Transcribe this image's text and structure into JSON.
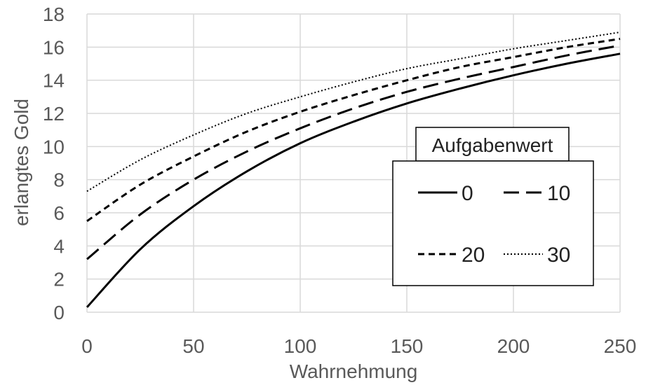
{
  "chart_data": {
    "type": "line",
    "title": "",
    "xlabel": "Wahrnehmung",
    "ylabel": "erlangtes Gold",
    "xlim": [
      0,
      250
    ],
    "ylim": [
      0,
      18
    ],
    "x_ticks": [
      "0",
      "50",
      "100",
      "150",
      "200",
      "250"
    ],
    "y_ticks": [
      "0",
      "2",
      "4",
      "6",
      "8",
      "10",
      "12",
      "14",
      "16",
      "18"
    ],
    "grid": true,
    "legend": {
      "title": "Aufgabenwert",
      "placement": "center-right",
      "entries": [
        "0",
        "10",
        "20",
        "30"
      ]
    },
    "x": [
      0,
      25,
      50,
      75,
      100,
      125,
      150,
      175,
      200,
      225,
      250
    ],
    "series": [
      {
        "name": "0",
        "style": "solid",
        "values": [
          0.3,
          3.8,
          6.4,
          8.5,
          10.2,
          11.5,
          12.6,
          13.5,
          14.3,
          15.0,
          15.6
        ]
      },
      {
        "name": "10",
        "style": "dashed",
        "values": [
          3.2,
          5.9,
          8.0,
          9.7,
          11.1,
          12.3,
          13.3,
          14.1,
          14.8,
          15.5,
          16.1
        ]
      },
      {
        "name": "20",
        "style": "dashed-short",
        "values": [
          5.5,
          7.7,
          9.4,
          10.9,
          12.1,
          13.1,
          14.0,
          14.8,
          15.4,
          16.0,
          16.5
        ]
      },
      {
        "name": "30",
        "style": "dotted",
        "values": [
          7.3,
          9.2,
          10.7,
          12.0,
          13.0,
          13.9,
          14.7,
          15.3,
          15.9,
          16.4,
          16.9
        ]
      }
    ],
    "colors": {
      "lines": "#000000",
      "grid": "#d9d9d9",
      "text": "#595959"
    }
  }
}
